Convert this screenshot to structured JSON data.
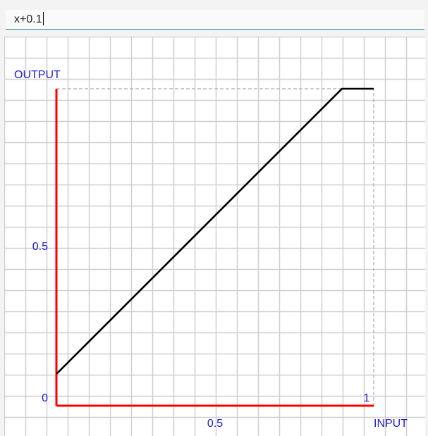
{
  "formula": {
    "value": "x+0.1"
  },
  "colors": {
    "axis": "#ff0000",
    "curve": "#000000",
    "label": "#1a1ad6",
    "grid": "#cfcfcf",
    "range_box": "#aaaaaa",
    "input_underline": "#1f8a9a"
  },
  "chart_data": {
    "type": "line",
    "title": "",
    "xlabel": "INPUT",
    "ylabel": "OUTPUT",
    "x_ticks": [
      {
        "value": 0.5,
        "label": "0.5"
      },
      {
        "value": 1,
        "label": "1"
      }
    ],
    "y_ticks": [
      {
        "value": 0,
        "label": "0"
      },
      {
        "value": 0.5,
        "label": "0.5"
      }
    ],
    "xlim": [
      0,
      1
    ],
    "ylim": [
      0,
      1
    ],
    "grid": true,
    "series": [
      {
        "x": [
          0,
          0.9,
          1
        ],
        "y": [
          0.1,
          1,
          1
        ]
      }
    ]
  }
}
